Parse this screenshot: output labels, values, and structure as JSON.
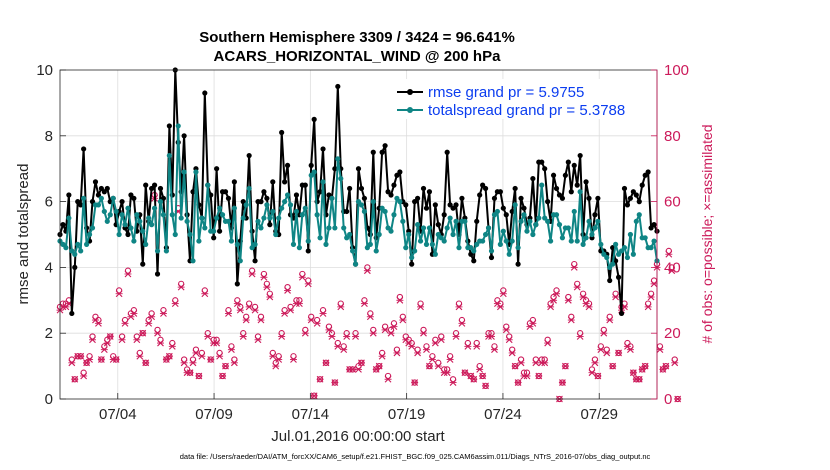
{
  "chart_data": {
    "type": "line",
    "title": "Southern Hemisphere 3309 / 3424 = 96.641%",
    "subtitle": "ACARS_HORIZONTAL_WIND @ 200 hPa",
    "xlabel": "Jul.01,2016 00:00:00 start",
    "ylabel": "rmse and totalspread",
    "y2label": "# of obs: o=possible; ×=assimilated",
    "x_ticks": [
      "07/04",
      "07/09",
      "07/14",
      "07/19",
      "07/24",
      "07/29"
    ],
    "x_tick_days": [
      4,
      9,
      14,
      19,
      24,
      29
    ],
    "xlim_days": [
      1,
      32
    ],
    "ylim": [
      0,
      10
    ],
    "y_ticks": [
      "0",
      "2",
      "4",
      "6",
      "8",
      "10"
    ],
    "y2lim": [
      0,
      100
    ],
    "y2_ticks": [
      "0",
      "20",
      "40",
      "60",
      "80",
      "100"
    ],
    "legend_position": "top-right",
    "grid": true,
    "colors": {
      "rmse": "#000000",
      "spread": "#0f8585",
      "obs": "#cc1a5a",
      "legend_text": "#0b3df0"
    },
    "series": [
      {
        "name": "rmse grand pr = 5.9755",
        "values": [
          5.0,
          5.3,
          5.1,
          6.2,
          2.6,
          4.0,
          6.0,
          5.9,
          7.6,
          5.2,
          4.8,
          6.0,
          6.6,
          6.2,
          6.4,
          6.3,
          6.4,
          6.0,
          6.1,
          5.3,
          5.7,
          6.0,
          5.2,
          5.0,
          6.2,
          6.1,
          5.1,
          5.6,
          4.1,
          6.5,
          5.4,
          6.4,
          6.5,
          3.8,
          6.4,
          6.1,
          4.6,
          8.3,
          6.2,
          10.0,
          7.8,
          6.3,
          8.0,
          5.6,
          4.2,
          6.3,
          7.0,
          5.9,
          5.5,
          9.3,
          6.5,
          6.2,
          4.9,
          7.0,
          5.1,
          6.3,
          6.3,
          6.1,
          5.2,
          6.6,
          3.5,
          4.8,
          6.0,
          5.5,
          7.4,
          5.1,
          4.2,
          6.0,
          6.0,
          6.3,
          6.1,
          5.3,
          6.6,
          5.1,
          5.0,
          8.1,
          6.6,
          7.1,
          5.6,
          5.5,
          6.2,
          5.6,
          6.5,
          6.5,
          4.5,
          7.1,
          8.5,
          6.0,
          6.3,
          7.6,
          5.6,
          6.2,
          6.1,
          7.0,
          9.5,
          7.0,
          5.7,
          5.7,
          6.4,
          4.6,
          4.1,
          7.0,
          6.4,
          6.1,
          5.2,
          5.0,
          7.5,
          4.9,
          5.8,
          7.5,
          7.7,
          6.3,
          6.2,
          6.5,
          6.8,
          6.9,
          6.0,
          5.9,
          5.1,
          4.1,
          6.0,
          6.1,
          5.1,
          6.4,
          5.8,
          6.3,
          4.4,
          5.9,
          5.3,
          5.0,
          5.6,
          7.5,
          5.9,
          5.8,
          5.9,
          5.0,
          6.1,
          5.5,
          4.8,
          4.4,
          4.2,
          5.4,
          6.2,
          6.5,
          6.4,
          5.2,
          4.3,
          6.1,
          6.3,
          6.3,
          5.8,
          5.6,
          4.7,
          5.7,
          6.4,
          4.1,
          6.1,
          5.8,
          5.3,
          5.5,
          6.7,
          5.3,
          7.2,
          7.2,
          7.0,
          6.0,
          5.4,
          6.8,
          6.4,
          6.2,
          6.1,
          6.8,
          7.2,
          6.3,
          7.1,
          6.5,
          7.4,
          5.0,
          6.6,
          6.1,
          4.9,
          5.6,
          6.1,
          4.5,
          4.5,
          4.4,
          3.6,
          4.6,
          4.2,
          3.7,
          2.6,
          6.4,
          5.9,
          6.1,
          6.3,
          6.2,
          6.0,
          6.5,
          6.8,
          6.9,
          5.2,
          5.3,
          5.1
        ]
      },
      {
        "name": "totalspread grand pr = 5.3788",
        "values": [
          4.8,
          4.7,
          4.6,
          5.5,
          4.5,
          4.4,
          4.7,
          4.5,
          6.1,
          4.7,
          5.0,
          5.2,
          5.9,
          5.9,
          6.1,
          5.7,
          5.4,
          5.6,
          6.1,
          5.7,
          5.0,
          5.6,
          5.3,
          5.8,
          5.2,
          4.8,
          5.6,
          5.4,
          5.1,
          4.7,
          5.5,
          5.3,
          5.8,
          4.5,
          6.0,
          5.6,
          4.5,
          7.4,
          5.6,
          5.0,
          8.3,
          5.5,
          6.9,
          5.4,
          5.0,
          4.2,
          6.9,
          4.8,
          5.5,
          5.2,
          6.5,
          5.1,
          5.1,
          5.5,
          5.8,
          5.6,
          5.4,
          5.4,
          4.8,
          5.8,
          4.7,
          4.2,
          5.5,
          5.9,
          6.4,
          4.6,
          4.7,
          5.4,
          5.2,
          5.5,
          5.9,
          5.5,
          5.7,
          5.0,
          5.5,
          5.8,
          6.0,
          6.2,
          5.9,
          4.7,
          5.7,
          4.6,
          5.6,
          5.8,
          4.8,
          6.8,
          6.9,
          5.6,
          4.9,
          6.6,
          4.7,
          5.2,
          6.1,
          5.2,
          7.3,
          6.7,
          5.2,
          4.9,
          5.0,
          4.5,
          4.1,
          6.0,
          5.9,
          5.7,
          4.6,
          4.7,
          6.0,
          4.5,
          5.0,
          5.8,
          5.7,
          5.2,
          5.1,
          5.6,
          6.1,
          6.0,
          5.4,
          4.6,
          5.0,
          4.3,
          4.5,
          5.3,
          4.8,
          5.2,
          4.7,
          5.2,
          4.7,
          4.4,
          5.0,
          4.9,
          4.8,
          5.2,
          5.5,
          5.0,
          5.4,
          4.6,
          5.4,
          5.4,
          4.6,
          4.6,
          4.5,
          4.7,
          4.8,
          4.8,
          5.0,
          5.2,
          4.5,
          5.6,
          5.7,
          4.7,
          5.1,
          4.8,
          4.4,
          4.8,
          5.9,
          4.6,
          5.4,
          5.6,
          5.1,
          5.4,
          5.0,
          5.3,
          5.5,
          6.5,
          5.5,
          5.4,
          4.8,
          5.6,
          5.6,
          5.3,
          4.9,
          5.2,
          5.2,
          4.8,
          5.7,
          4.8,
          6.3,
          4.7,
          4.9,
          5.4,
          5.0,
          5.2,
          5.4,
          4.7,
          4.4,
          4.3,
          4.0,
          4.1,
          4.7,
          4.4,
          4.5,
          4.6,
          4.3,
          5.0,
          4.4,
          5.4,
          5.6,
          4.9,
          4.9,
          4.6,
          4.6,
          4.8,
          4.2
        ]
      },
      {
        "name": "# of obs possible",
        "axis": "right",
        "values": [
          28,
          29,
          29,
          30,
          12,
          6,
          13,
          13,
          8,
          11,
          13,
          19,
          25,
          24,
          12,
          16,
          18,
          19,
          13,
          12,
          33,
          19,
          24,
          39,
          26,
          27,
          19,
          14,
          20,
          11,
          24,
          26,
          62,
          21,
          18,
          27,
          12,
          13,
          17,
          30,
          58,
          35,
          12,
          9,
          8,
          12,
          15,
          7,
          14,
          33,
          20,
          12,
          18,
          18,
          14,
          7,
          10,
          27,
          16,
          12,
          30,
          28,
          20,
          25,
          29,
          39,
          28,
          19,
          25,
          38,
          35,
          32,
          14,
          11,
          13,
          20,
          27,
          34,
          28,
          13,
          30,
          30,
          38,
          21,
          36,
          25,
          1,
          24,
          6,
          27,
          11,
          22,
          20,
          5,
          17,
          29,
          16,
          20,
          9,
          9,
          20,
          10,
          11,
          30,
          40,
          26,
          21,
          9,
          10,
          14,
          22,
          7,
          21,
          23,
          15,
          31,
          25,
          19,
          18,
          17,
          5,
          15,
          29,
          21,
          16,
          10,
          13,
          18,
          11,
          19,
          9,
          9,
          13,
          6,
          20,
          29,
          24,
          8,
          17,
          7,
          6,
          17,
          10,
          7,
          4,
          20,
          20,
          16,
          30,
          29,
          33,
          22,
          19,
          15,
          10,
          5,
          12,
          8,
          8,
          23,
          24,
          12,
          7,
          12,
          12,
          18,
          29,
          31,
          33,
          0,
          5,
          10,
          31,
          25,
          41,
          35,
          20,
          32,
          30,
          29,
          9,
          12,
          7,
          16,
          21,
          15,
          25,
          10,
          32,
          14,
          28,
          29,
          17,
          16,
          8,
          6,
          6,
          9,
          10,
          29,
          32,
          36,
          41,
          16,
          9,
          10,
          45,
          40,
          12,
          0
        ]
      },
      {
        "name": "# of obs assimilated",
        "axis": "right",
        "values": [
          27,
          28,
          28,
          29,
          11,
          6,
          13,
          13,
          7,
          11,
          12,
          18,
          24,
          23,
          12,
          15,
          17,
          19,
          12,
          12,
          32,
          18,
          23,
          38,
          25,
          26,
          18,
          13,
          20,
          11,
          23,
          25,
          61,
          20,
          17,
          26,
          12,
          13,
          16,
          29,
          57,
          34,
          11,
          8,
          8,
          11,
          14,
          7,
          13,
          32,
          19,
          12,
          17,
          17,
          13,
          7,
          10,
          26,
          15,
          11,
          29,
          27,
          19,
          24,
          28,
          38,
          27,
          18,
          24,
          37,
          34,
          31,
          13,
          10,
          12,
          19,
          26,
          33,
          27,
          12,
          29,
          29,
          37,
          20,
          35,
          24,
          1,
          23,
          6,
          26,
          11,
          21,
          19,
          5,
          16,
          28,
          15,
          19,
          9,
          9,
          19,
          9,
          11,
          29,
          39,
          25,
          20,
          9,
          10,
          13,
          21,
          6,
          20,
          22,
          14,
          30,
          24,
          18,
          17,
          16,
          5,
          14,
          28,
          20,
          15,
          10,
          12,
          17,
          10,
          18,
          8,
          8,
          12,
          5,
          19,
          28,
          23,
          8,
          16,
          7,
          6,
          16,
          9,
          7,
          4,
          19,
          19,
          15,
          29,
          28,
          32,
          21,
          18,
          14,
          10,
          5,
          11,
          7,
          7,
          22,
          23,
          11,
          7,
          11,
          11,
          17,
          28,
          30,
          32,
          0,
          5,
          10,
          30,
          24,
          40,
          34,
          19,
          31,
          29,
          28,
          8,
          11,
          7,
          15,
          20,
          14,
          24,
          10,
          31,
          14,
          27,
          28,
          16,
          15,
          8,
          6,
          6,
          9,
          10,
          28,
          31,
          35,
          40,
          15,
          9,
          10,
          44,
          39,
          11,
          0
        ]
      }
    ]
  },
  "footer": {
    "datafile": "data file: /Users/raeder/DAI/ATM_forcXX/CAM6_setup/f.e21.FHIST_BGC.f09_025.CAM6assim.011/Diags_NTrS_2016-07/obs_diag_output.nc"
  }
}
